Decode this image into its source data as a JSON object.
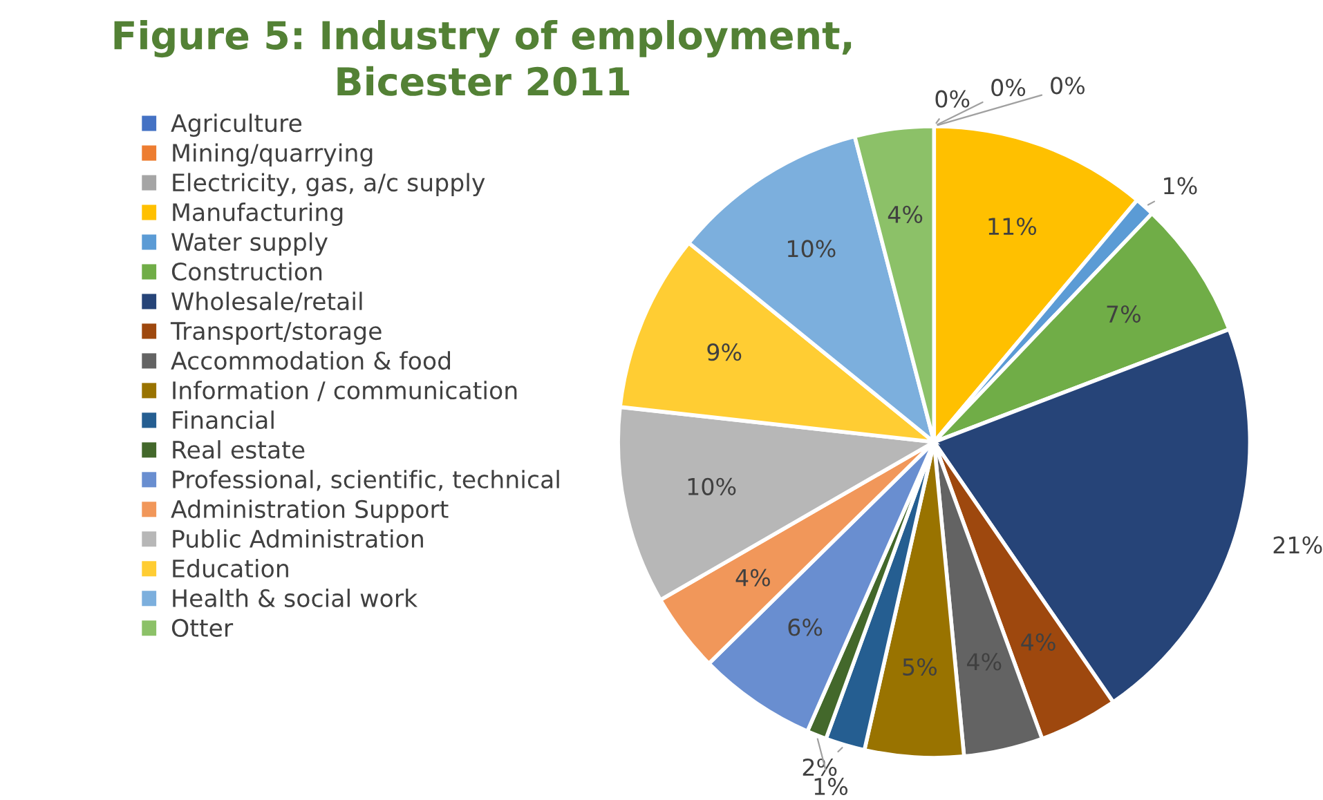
{
  "chart_data": {
    "type": "pie",
    "title": "Figure 5: Industry of employment,\nBicester 2011",
    "categories": [
      "Agriculture",
      "Mining/quarrying",
      "Electricity, gas, a/c supply",
      "Manufacturing",
      "Water supply",
      "Construction",
      "Wholesale/retail",
      "Transport/storage",
      "Accommodation & food",
      "Information / communication",
      "Financial",
      "Real estate",
      "Professional, scientific, technical",
      "Administration Support",
      "Public Administration",
      "Education",
      "Health & social work",
      "Otter"
    ],
    "values": [
      0,
      0,
      0,
      11,
      1,
      7,
      21,
      4,
      4,
      5,
      2,
      1,
      6,
      4,
      10,
      9,
      10,
      4
    ],
    "value_labels": [
      "0%",
      "0%",
      "0%",
      "11%",
      "1%",
      "7%",
      "21%",
      "4%",
      "4%",
      "5%",
      "2%",
      "1%",
      "6%",
      "4%",
      "10%",
      "9%",
      "10%",
      "4%"
    ],
    "colors": [
      "#4472c4",
      "#ed7d31",
      "#a5a5a5",
      "#ffc000",
      "#5b9bd5",
      "#70ad47",
      "#264478",
      "#9e480e",
      "#636363",
      "#997300",
      "#255e91",
      "#43682b",
      "#698ed0",
      "#f1975a",
      "#b7b7b7",
      "#ffcd33",
      "#7cafdd",
      "#8cc168"
    ],
    "legend": "left"
  }
}
